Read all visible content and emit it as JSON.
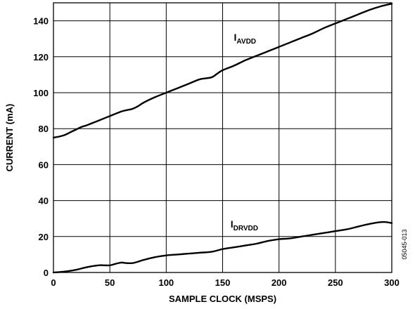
{
  "chart_data": {
    "type": "line",
    "xlabel": "SAMPLE CLOCK (MSPS)",
    "ylabel": "CURRENT (mA)",
    "xlim": [
      0,
      300
    ],
    "ylim": [
      0,
      150
    ],
    "x_ticks": [
      0,
      50,
      100,
      150,
      200,
      250,
      300
    ],
    "y_ticks": [
      0,
      20,
      40,
      60,
      80,
      100,
      120,
      140
    ],
    "grid": true,
    "figure_id": "05045-013",
    "series": [
      {
        "name_main": "I",
        "name_sub": "AVDD",
        "label_at": [
          160,
          129
        ],
        "x": [
          0,
          5,
          10,
          15,
          20,
          25,
          30,
          40,
          50,
          60,
          65,
          70,
          75,
          80,
          90,
          100,
          110,
          120,
          130,
          140,
          145,
          150,
          160,
          170,
          180,
          190,
          200,
          210,
          220,
          230,
          240,
          250,
          260,
          270,
          280,
          290,
          300
        ],
        "values": [
          75,
          75.6,
          76.5,
          78,
          79.5,
          81,
          82,
          84.5,
          87,
          89.5,
          90.3,
          91,
          92.5,
          94.5,
          97.5,
          100,
          102.5,
          105,
          107.5,
          108.5,
          110.5,
          112.5,
          115,
          118,
          120.5,
          123,
          125.5,
          128,
          130.5,
          133,
          136,
          138.5,
          141,
          143.5,
          146,
          148,
          149.5
        ]
      },
      {
        "name_main": "I",
        "name_sub": "DRVDD",
        "label_at": [
          157,
          25
        ],
        "x": [
          0,
          10,
          20,
          30,
          40,
          45,
          50,
          55,
          60,
          65,
          70,
          75,
          80,
          90,
          100,
          110,
          120,
          130,
          140,
          150,
          160,
          170,
          180,
          190,
          200,
          210,
          220,
          230,
          240,
          250,
          260,
          270,
          280,
          290,
          295,
          300
        ],
        "values": [
          0,
          0.5,
          1.5,
          3,
          4,
          4,
          4,
          4.8,
          5.5,
          5.2,
          5.2,
          6,
          7,
          8.5,
          9.5,
          10,
          10.5,
          11,
          11.5,
          13,
          14,
          15,
          16,
          17.5,
          18.5,
          19,
          20,
          21,
          22,
          23,
          24,
          25.5,
          27,
          28,
          28,
          27.5
        ]
      }
    ]
  }
}
